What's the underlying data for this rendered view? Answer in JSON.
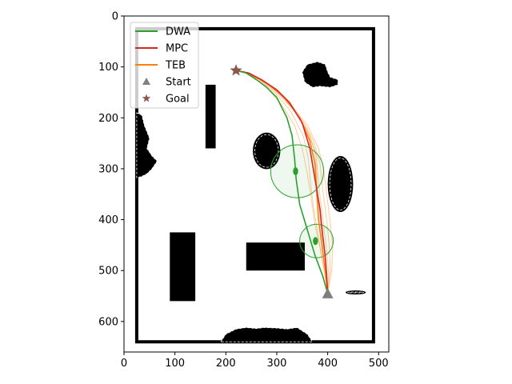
{
  "chart_data": {
    "type": "line",
    "title": "",
    "xlabel": "",
    "ylabel": "",
    "xlim": [
      0,
      520
    ],
    "ylim": [
      660,
      0
    ],
    "y_inverted": true,
    "aspect": "equal",
    "grid": false,
    "x_ticks": [
      0,
      100,
      200,
      300,
      400,
      500
    ],
    "y_ticks": [
      0,
      100,
      200,
      300,
      400,
      500,
      600
    ],
    "legend": {
      "placement": "top-left",
      "entries": [
        {
          "label": "DWA",
          "kind": "line",
          "color": "#2ca02c"
        },
        {
          "label": "MPC",
          "kind": "line",
          "color": "#d62728"
        },
        {
          "label": "TEB",
          "kind": "line",
          "color": "#ff7f0e"
        },
        {
          "label": "Start",
          "kind": "triangle",
          "color": "#7f7f7f"
        },
        {
          "label": "Goal",
          "kind": "star",
          "color": "#8c564b"
        }
      ]
    },
    "start": {
      "label": "Start",
      "x": 400,
      "y": 545,
      "color": "#7f7f7f"
    },
    "goal": {
      "label": "Goal",
      "x": 220,
      "y": 107,
      "color": "#8c564b"
    },
    "boundary": {
      "x0": 25,
      "y0": 25,
      "x1": 490,
      "y1": 640,
      "color": "#000000"
    },
    "obstacles": {
      "rects": [
        {
          "x0": 160,
          "y0": 135,
          "x1": 180,
          "y1": 260
        },
        {
          "x0": 90,
          "y0": 425,
          "x1": 140,
          "y1": 560
        },
        {
          "x0": 240,
          "y0": 445,
          "x1": 355,
          "y1": 500
        }
      ],
      "ellipses": [
        {
          "cx": 280,
          "cy": 265,
          "rx": 27,
          "ry": 36
        },
        {
          "cx": 425,
          "cy": 330,
          "rx": 25,
          "ry": 55
        },
        {
          "cx": 455,
          "cy": 543,
          "rx": 20,
          "ry": 4
        }
      ],
      "blobs": [
        {
          "points": [
            [
              350,
              110
            ],
            [
              360,
              95
            ],
            [
              380,
              90
            ],
            [
              395,
              95
            ],
            [
              400,
              110
            ],
            [
              405,
              120
            ],
            [
              420,
              125
            ],
            [
              420,
              135
            ],
            [
              405,
              140
            ],
            [
              385,
              138
            ],
            [
              370,
              140
            ],
            [
              355,
              130
            ]
          ]
        },
        {
          "points": [
            [
              25,
              190
            ],
            [
              35,
              195
            ],
            [
              40,
              215
            ],
            [
              50,
              240
            ],
            [
              45,
              260
            ],
            [
              55,
              275
            ],
            [
              65,
              285
            ],
            [
              55,
              300
            ],
            [
              45,
              310
            ],
            [
              35,
              315
            ],
            [
              25,
              318
            ]
          ]
        },
        {
          "points": [
            [
              190,
              640
            ],
            [
              200,
              625
            ],
            [
              220,
              615
            ],
            [
              240,
              612
            ],
            [
              260,
              614
            ],
            [
              275,
              612
            ],
            [
              300,
              613
            ],
            [
              320,
              615
            ],
            [
              340,
              612
            ],
            [
              360,
              625
            ],
            [
              370,
              640
            ]
          ]
        }
      ]
    },
    "series": [
      {
        "name": "DWA",
        "color": "#2ca02c",
        "points": [
          [
            400,
            545
          ],
          [
            390,
            510
          ],
          [
            375,
            470
          ],
          [
            360,
            420
          ],
          [
            345,
            370
          ],
          [
            338,
            320
          ],
          [
            335,
            280
          ],
          [
            330,
            235
          ],
          [
            320,
            200
          ],
          [
            300,
            160
          ],
          [
            280,
            140
          ],
          [
            260,
            125
          ],
          [
            240,
            112
          ],
          [
            220,
            107
          ]
        ]
      },
      {
        "name": "MPC",
        "color": "#d62728",
        "points": [
          [
            400,
            545
          ],
          [
            398,
            510
          ],
          [
            395,
            470
          ],
          [
            390,
            430
          ],
          [
            385,
            380
          ],
          [
            375,
            320
          ],
          [
            365,
            260
          ],
          [
            350,
            210
          ],
          [
            325,
            170
          ],
          [
            300,
            145
          ],
          [
            270,
            125
          ],
          [
            245,
            112
          ],
          [
            220,
            107
          ]
        ]
      },
      {
        "name": "TEB",
        "color": "#ff7f0e",
        "points": [
          [
            400,
            545
          ],
          [
            396,
            505
          ],
          [
            390,
            460
          ],
          [
            382,
            400
          ],
          [
            378,
            340
          ],
          [
            375,
            290
          ],
          [
            365,
            245
          ],
          [
            345,
            200
          ],
          [
            315,
            160
          ],
          [
            285,
            135
          ],
          [
            255,
            118
          ],
          [
            235,
            110
          ],
          [
            220,
            107
          ]
        ]
      }
    ],
    "teb_candidates": [
      [
        [
          400,
          545
        ],
        [
          405,
          500
        ],
        [
          403,
          450
        ],
        [
          398,
          400
        ],
        [
          390,
          340
        ],
        [
          385,
          290
        ],
        [
          372,
          245
        ],
        [
          350,
          205
        ],
        [
          318,
          165
        ],
        [
          285,
          135
        ],
        [
          255,
          118
        ],
        [
          235,
          110
        ],
        [
          220,
          107
        ]
      ],
      [
        [
          400,
          545
        ],
        [
          408,
          500
        ],
        [
          410,
          455
        ],
        [
          405,
          405
        ],
        [
          398,
          350
        ],
        [
          392,
          300
        ],
        [
          382,
          260
        ],
        [
          360,
          215
        ],
        [
          325,
          170
        ],
        [
          290,
          138
        ],
        [
          258,
          119
        ],
        [
          236,
          110
        ],
        [
          220,
          107
        ]
      ],
      [
        [
          400,
          545
        ],
        [
          393,
          500
        ],
        [
          385,
          455
        ],
        [
          375,
          410
        ],
        [
          368,
          360
        ],
        [
          360,
          310
        ],
        [
          350,
          260
        ],
        [
          335,
          215
        ],
        [
          310,
          175
        ],
        [
          280,
          140
        ],
        [
          252,
          118
        ],
        [
          233,
          109
        ],
        [
          220,
          107
        ]
      ],
      [
        [
          400,
          545
        ],
        [
          398,
          500
        ],
        [
          392,
          450
        ],
        [
          385,
          400
        ],
        [
          380,
          345
        ],
        [
          378,
          300
        ],
        [
          374,
          262
        ],
        [
          358,
          222
        ],
        [
          330,
          180
        ],
        [
          298,
          148
        ],
        [
          262,
          122
        ],
        [
          238,
          111
        ],
        [
          220,
          107
        ]
      ],
      [
        [
          400,
          545
        ],
        [
          402,
          505
        ],
        [
          398,
          460
        ],
        [
          392,
          410
        ],
        [
          385,
          355
        ],
        [
          380,
          305
        ],
        [
          378,
          275
        ],
        [
          365,
          235
        ],
        [
          338,
          190
        ],
        [
          305,
          152
        ],
        [
          268,
          125
        ],
        [
          240,
          112
        ],
        [
          220,
          107
        ]
      ],
      [
        [
          400,
          545
        ],
        [
          396,
          510
        ],
        [
          388,
          470
        ],
        [
          380,
          425
        ],
        [
          372,
          375
        ],
        [
          366,
          325
        ],
        [
          362,
          280
        ],
        [
          352,
          235
        ],
        [
          328,
          188
        ],
        [
          296,
          150
        ],
        [
          262,
          123
        ],
        [
          238,
          111
        ],
        [
          220,
          107
        ]
      ]
    ],
    "safety_circles": [
      {
        "cx": 340,
        "cy": 305,
        "r": 52,
        "color": "#2ca02c"
      },
      {
        "cx": 378,
        "cy": 442,
        "r": 33,
        "color": "#2ca02c"
      }
    ],
    "robot_markers": [
      {
        "x": 337,
        "y": 305,
        "color": "#2ca02c"
      },
      {
        "x": 376,
        "y": 442,
        "color": "#2ca02c"
      }
    ]
  }
}
